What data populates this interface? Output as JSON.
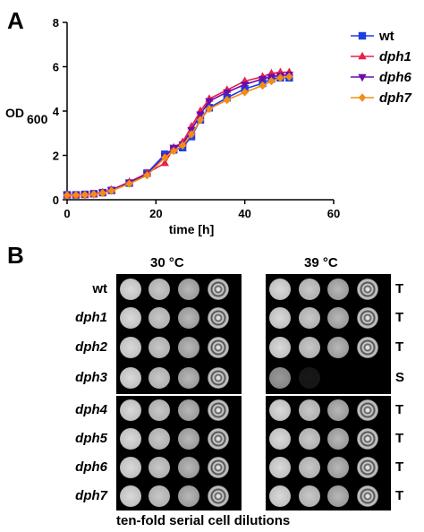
{
  "panels": {
    "a_label": "A",
    "b_label": "B"
  },
  "chart_data": {
    "type": "line",
    "xlabel": "time [h]",
    "ylabel": "OD",
    "ylabel_sub": "600",
    "xlim": [
      0,
      60
    ],
    "ylim": [
      0,
      8
    ],
    "xticks": [
      "0",
      "20",
      "40",
      "60"
    ],
    "yticks": [
      "0",
      "2",
      "4",
      "6",
      "8"
    ],
    "legend_position": "top-right",
    "x": [
      0,
      2,
      4,
      6,
      8,
      10,
      14,
      18,
      22,
      24,
      26,
      28,
      30,
      32,
      36,
      40,
      44,
      46,
      48,
      50
    ],
    "series": [
      {
        "name": "wt",
        "color": "#1f3fe0",
        "marker": "square",
        "values": [
          0.22,
          0.22,
          0.24,
          0.27,
          0.32,
          0.42,
          0.75,
          1.2,
          2.05,
          2.25,
          2.35,
          2.85,
          3.6,
          4.15,
          4.6,
          5.0,
          5.25,
          5.45,
          5.5,
          5.5
        ]
      },
      {
        "name": "dph1",
        "color": "#e8204a",
        "marker": "triangle-up",
        "values": [
          0.2,
          0.21,
          0.23,
          0.26,
          0.33,
          0.45,
          0.8,
          1.2,
          1.65,
          2.35,
          2.6,
          3.3,
          4.0,
          4.55,
          4.95,
          5.35,
          5.55,
          5.7,
          5.75,
          5.75
        ]
      },
      {
        "name": "dph6",
        "color": "#6a0dad",
        "marker": "triangle-down",
        "values": [
          0.21,
          0.22,
          0.23,
          0.26,
          0.32,
          0.43,
          0.78,
          1.15,
          1.95,
          2.35,
          2.5,
          3.15,
          3.85,
          4.45,
          4.85,
          5.2,
          5.45,
          5.55,
          5.6,
          5.65
        ]
      },
      {
        "name": "dph7",
        "color": "#f28c1a",
        "marker": "diamond",
        "values": [
          0.2,
          0.21,
          0.22,
          0.25,
          0.3,
          0.4,
          0.72,
          1.1,
          1.9,
          2.2,
          2.45,
          2.95,
          3.6,
          4.1,
          4.5,
          4.85,
          5.15,
          5.35,
          5.5,
          5.55
        ]
      }
    ]
  },
  "spot_assay": {
    "temperatures": [
      "30 °C",
      "39 °C"
    ],
    "strains": [
      "wt",
      "dph1",
      "dph2",
      "dph3",
      "dph4",
      "dph5",
      "dph6",
      "dph7"
    ],
    "phenotypes": [
      "T",
      "T",
      "T",
      "S",
      "T",
      "T",
      "T",
      "T"
    ],
    "growth_39": [
      [
        1,
        1,
        1,
        1
      ],
      [
        1,
        1,
        1,
        1
      ],
      [
        1,
        1,
        1,
        1
      ],
      [
        0.7,
        0.12,
        0,
        0
      ],
      [
        1,
        1,
        1,
        1
      ],
      [
        1,
        1,
        1,
        1
      ],
      [
        1,
        1,
        1,
        1
      ],
      [
        1,
        1,
        1,
        1
      ]
    ],
    "footer": "ten-fold serial cell dilutions"
  }
}
